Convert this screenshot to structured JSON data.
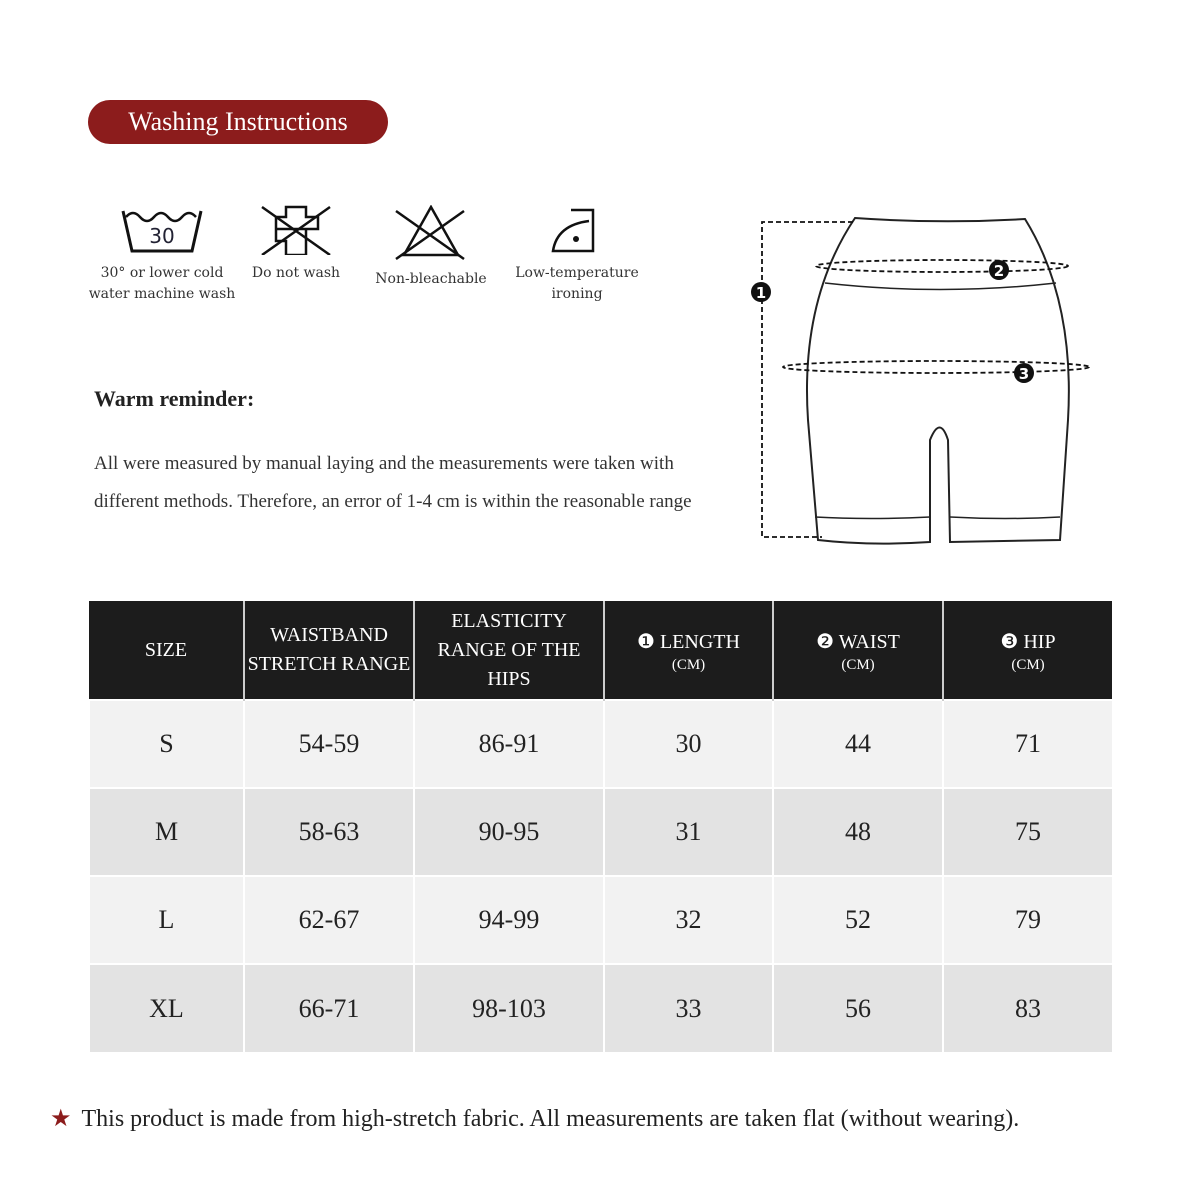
{
  "title": "Washing Instructions",
  "accent_color": "#8c1c1c",
  "care_items": [
    {
      "icon": "wash-30-icon",
      "number": "30",
      "label_line1": "30° or lower cold",
      "label_line2": "water machine wash"
    },
    {
      "icon": "do-not-wash-icon",
      "label_line1": "Do not wash",
      "label_line2": ""
    },
    {
      "icon": "non-bleachable-icon",
      "label_line1": "Non-bleachable",
      "label_line2": ""
    },
    {
      "icon": "low-temperature-iron-icon",
      "label_line1": "Low-temperature",
      "label_line2": "ironing"
    }
  ],
  "reminder": {
    "title": "Warm reminder:",
    "text": "All were measured by manual laying and the measurements were taken with different methods. Therefore, an error of 1-4 cm is within the reasonable range"
  },
  "diagram": {
    "markers": [
      "1",
      "2",
      "3"
    ]
  },
  "table": {
    "headers": [
      {
        "line1": "SIZE",
        "line2": ""
      },
      {
        "line1": "WAISTBAND",
        "line2": "STRETCH RANGE"
      },
      {
        "line1": "ELASTICITY",
        "line2": "RANGE OF THE HIPS"
      },
      {
        "line1": "❶ LENGTH",
        "unit": "(CM)"
      },
      {
        "line1": "❷ WAIST",
        "unit": "(CM)"
      },
      {
        "line1": "❸ HIP",
        "unit": "(CM)"
      }
    ],
    "rows": [
      [
        "S",
        "54-59",
        "86-91",
        "30",
        "44",
        "71"
      ],
      [
        "M",
        "58-63",
        "90-95",
        "31",
        "48",
        "75"
      ],
      [
        "L",
        "62-67",
        "94-99",
        "32",
        "52",
        "79"
      ],
      [
        "XL",
        "66-71",
        "98-103",
        "33",
        "56",
        "83"
      ]
    ]
  },
  "note": {
    "star": "★",
    "text": "This product is made from high-stretch fabric. All measurements are taken flat (without wearing)."
  }
}
